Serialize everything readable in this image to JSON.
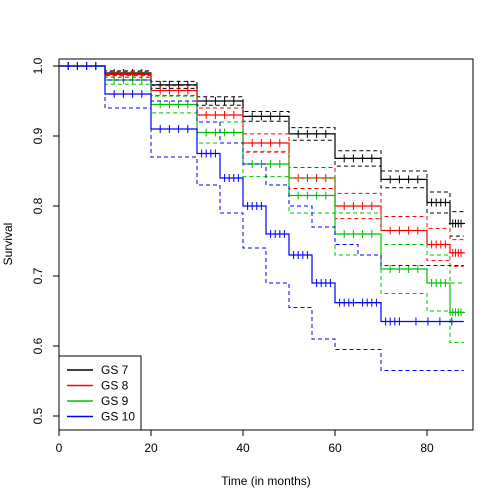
{
  "chart_data": {
    "type": "line",
    "title": "",
    "xlabel": "Time (in months)",
    "ylabel": "Survival",
    "xlim": [
      0,
      90
    ],
    "ylim": [
      0.48,
      1.01
    ],
    "xticks": [
      0,
      20,
      40,
      60,
      80
    ],
    "yticks": [
      0.5,
      0.6,
      0.7,
      0.8,
      0.9,
      1.0
    ],
    "xtick_labels": [
      "0",
      "20",
      "40",
      "60",
      "80"
    ],
    "ytick_labels": [
      "0.5",
      "0.6",
      "0.7",
      "0.8",
      "0.9",
      "1.0"
    ],
    "grid": false,
    "legend_position": "bottom-left",
    "confidence_bands": "dashed",
    "censor_marks": "plus",
    "series": [
      {
        "name": "GS 7",
        "color": "#000000",
        "x": [
          0,
          10,
          20,
          30,
          40,
          50,
          60,
          70,
          80,
          85,
          88
        ],
        "y": [
          1.0,
          0.99,
          0.973,
          0.95,
          0.928,
          0.903,
          0.868,
          0.838,
          0.805,
          0.775,
          0.775
        ],
        "lower": [
          1.0,
          0.987,
          0.968,
          0.944,
          0.921,
          0.894,
          0.857,
          0.826,
          0.79,
          0.757,
          0.757
        ],
        "upper": [
          1.0,
          0.993,
          0.978,
          0.956,
          0.935,
          0.912,
          0.879,
          0.85,
          0.82,
          0.792,
          0.792
        ]
      },
      {
        "name": "GS 8",
        "color": "#ff0000",
        "x": [
          0,
          10,
          20,
          30,
          40,
          50,
          60,
          70,
          80,
          85,
          88
        ],
        "y": [
          1.0,
          0.988,
          0.965,
          0.93,
          0.89,
          0.84,
          0.8,
          0.765,
          0.745,
          0.733,
          0.733
        ],
        "lower": [
          1.0,
          0.984,
          0.958,
          0.92,
          0.877,
          0.825,
          0.782,
          0.745,
          0.722,
          0.714,
          0.714
        ],
        "upper": [
          1.0,
          0.992,
          0.972,
          0.94,
          0.903,
          0.855,
          0.818,
          0.785,
          0.768,
          0.752,
          0.752
        ]
      },
      {
        "name": "GS 9",
        "color": "#00c000",
        "x": [
          0,
          10,
          20,
          30,
          40,
          50,
          60,
          70,
          80,
          85,
          88
        ],
        "y": [
          1.0,
          0.98,
          0.945,
          0.905,
          0.86,
          0.815,
          0.76,
          0.71,
          0.69,
          0.648,
          0.648
        ],
        "lower": [
          1.0,
          0.974,
          0.933,
          0.89,
          0.842,
          0.79,
          0.73,
          0.675,
          0.65,
          0.605,
          0.605
        ],
        "upper": [
          1.0,
          0.986,
          0.957,
          0.92,
          0.878,
          0.84,
          0.79,
          0.745,
          0.73,
          0.69,
          0.69
        ]
      },
      {
        "name": "GS 10",
        "color": "#0000ff",
        "x": [
          0,
          10,
          20,
          30,
          35,
          40,
          45,
          50,
          55,
          60,
          65,
          70,
          75,
          88
        ],
        "y": [
          1.0,
          0.96,
          0.91,
          0.875,
          0.84,
          0.8,
          0.76,
          0.73,
          0.69,
          0.662,
          0.662,
          0.635,
          0.635,
          0.635
        ],
        "lower": [
          1.0,
          0.94,
          0.87,
          0.83,
          0.79,
          0.74,
          0.69,
          0.655,
          0.61,
          0.595,
          0.595,
          0.565,
          0.565,
          0.565
        ],
        "upper": [
          1.0,
          0.98,
          0.95,
          0.92,
          0.89,
          0.86,
          0.83,
          0.8,
          0.77,
          0.745,
          0.73,
          0.715,
          0.715,
          0.715
        ]
      }
    ]
  }
}
